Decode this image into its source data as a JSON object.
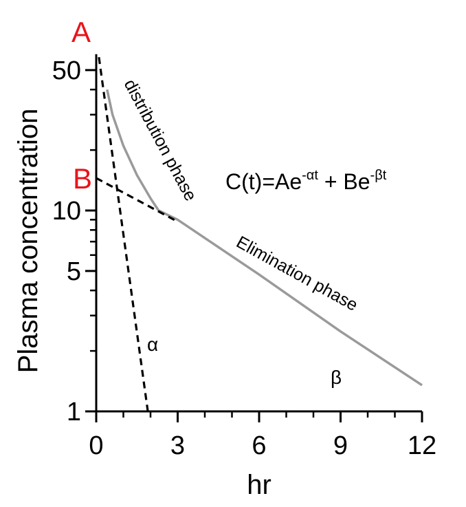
{
  "chart_data": {
    "type": "line",
    "xlabel": "hr",
    "ylabel": "Plasma concentration",
    "xlim": [
      0,
      12
    ],
    "ylim": [
      1,
      60
    ],
    "yscale": "log",
    "x_ticks": [
      0,
      3,
      6,
      9,
      12
    ],
    "y_ticks": [
      1,
      5,
      10,
      50
    ],
    "grid": false,
    "series": [
      {
        "style": "solid-gray",
        "x": [
          0.4,
          0.6,
          1.0,
          1.5,
          2.0,
          2.3,
          3.0,
          6.0,
          9.0,
          12.0
        ],
        "y": [
          40,
          30,
          21,
          15,
          11.5,
          10.0,
          9.0,
          4.8,
          2.5,
          1.35
        ]
      },
      {
        "style": "dashed",
        "x": [
          0.1,
          1.9
        ],
        "y": [
          58,
          1
        ]
      },
      {
        "style": "dashed",
        "x": [
          0,
          3.0
        ],
        "y": [
          14.5,
          8.8
        ]
      }
    ],
    "annotations": {
      "A": "A",
      "B": "B",
      "distribution": "distribution phase",
      "elimination": "Elimination phase",
      "alpha": "α",
      "beta": "β"
    },
    "equation": {
      "prefix": "C(t)=Ae",
      "sup1": "-αt",
      "middle": " + Be",
      "sup2": "-βt"
    },
    "colors": {
      "curve": "#9a9a9a",
      "dashed": "#000000",
      "labels_AB": "#e8141b"
    }
  }
}
